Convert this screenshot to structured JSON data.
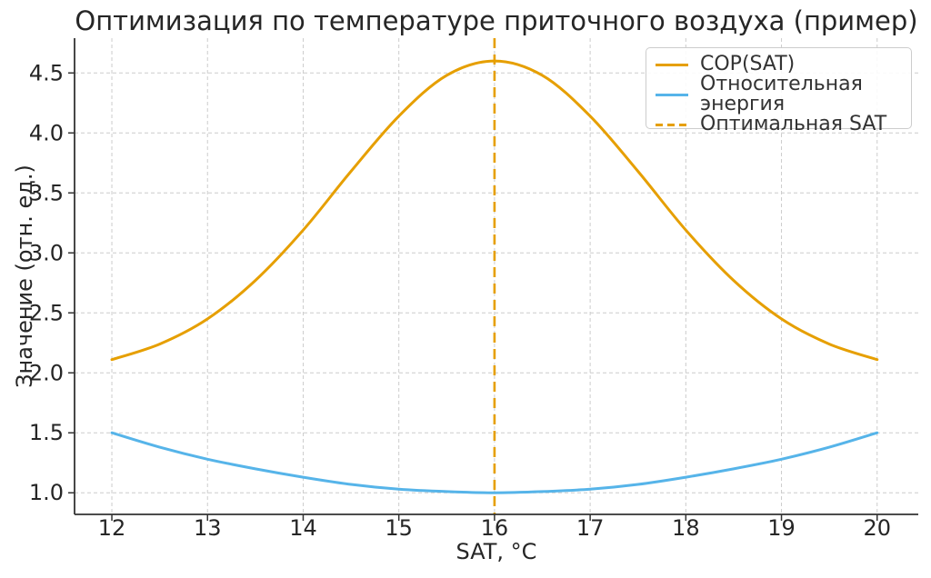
{
  "title": "Оптимизация по температуре приточного воздуха (пример)",
  "colors": {
    "cop": "#E69F00",
    "energy": "#56B4E9",
    "optimal": "#E69F00",
    "grid": "#cccccc",
    "spine": "#333333",
    "text": "#262626",
    "background": "#ffffff"
  },
  "chart_data": {
    "type": "line",
    "title": "Оптимизация по температуре приточного воздуха (пример)",
    "xlabel": "SAT, °C",
    "ylabel": "Значение (отн. ед.)",
    "xlim": [
      11.61,
      20.43
    ],
    "ylim": [
      0.82,
      4.79
    ],
    "x_ticks": [
      12,
      13,
      14,
      15,
      16,
      17,
      18,
      19,
      20
    ],
    "y_ticks": [
      1.0,
      1.5,
      2.0,
      2.5,
      3.0,
      3.5,
      4.0,
      4.5
    ],
    "grid": "dashed-on",
    "legend_position": "upper right",
    "x": [
      12,
      12.5,
      13,
      13.5,
      14,
      14.5,
      15,
      15.5,
      16,
      16.5,
      17,
      17.5,
      18,
      18.5,
      19,
      19.5,
      20
    ],
    "series": [
      {
        "name": "COP(SAT)",
        "color": "#E69F00",
        "style": "solid",
        "values": [
          2.11,
          2.24,
          2.45,
          2.77,
          3.19,
          3.68,
          4.14,
          4.48,
          4.6,
          4.48,
          4.14,
          3.68,
          3.19,
          2.77,
          2.45,
          2.24,
          2.11
        ]
      },
      {
        "name": "Относительная энергия",
        "color": "#56B4E9",
        "style": "solid",
        "values": [
          1.5,
          1.38,
          1.28,
          1.2,
          1.13,
          1.07,
          1.03,
          1.01,
          1.0,
          1.01,
          1.03,
          1.07,
          1.13,
          1.2,
          1.28,
          1.38,
          1.5
        ]
      }
    ],
    "optimal_sat": {
      "label": "Оптимальная SAT",
      "x": 16,
      "color": "#E69F00",
      "style": "dashed"
    }
  }
}
